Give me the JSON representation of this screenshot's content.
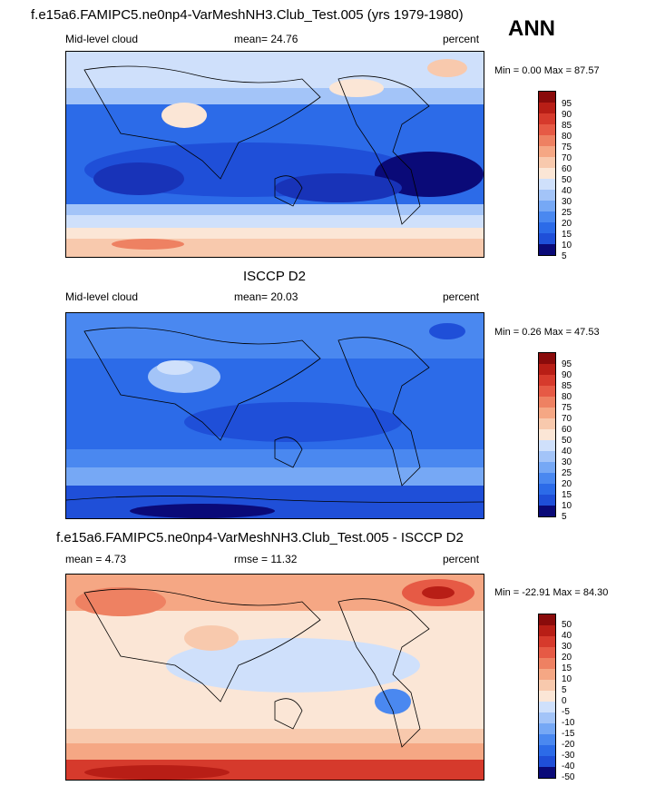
{
  "season": "ANN",
  "colors": {
    "pos": [
      "#0a0a78",
      "#1833b8",
      "#1f4fd8",
      "#2c6be8",
      "#4a88f0",
      "#76a8f5",
      "#a3c4f8",
      "#cfe0fb",
      "#fbe6d6",
      "#f8c9ad",
      "#f5a784",
      "#ee8162",
      "#e65a45",
      "#d63a2c",
      "#b81e16",
      "#8a0b0b"
    ],
    "diff": [
      "#0a0a78",
      "#1833b8",
      "#1f4fd8",
      "#2c6be8",
      "#4a88f0",
      "#76a8f5",
      "#a3c4f8",
      "#cfe0fb",
      "#fbe6d6",
      "#f8c9ad",
      "#f5a784",
      "#ee8162",
      "#e65a45",
      "#d63a2c",
      "#b81e16",
      "#8a0b0b"
    ]
  },
  "chart_data": [
    {
      "type": "heatmap",
      "title": "f.e15a6.FAMIPC5.ne0np4-VarMeshNH3.Club_Test.005 (yrs 1979-1980)",
      "left_label": "Mid-level cloud",
      "mean_label": "mean=  24.76",
      "units": "percent",
      "minmax": "Min =   0.00 Max =  87.57",
      "mean": 24.76,
      "min": 0.0,
      "max": 87.57,
      "levels": [
        "95",
        "90",
        "85",
        "80",
        "75",
        "70",
        "60",
        "50",
        "40",
        "30",
        "25",
        "20",
        "15",
        "10",
        "5"
      ]
    },
    {
      "type": "heatmap",
      "title": "ISCCP D2",
      "left_label": "Mid-level cloud",
      "mean_label": "mean=  20.03",
      "units": "percent",
      "minmax": "Min =   0.26 Max =  47.53",
      "mean": 20.03,
      "min": 0.26,
      "max": 47.53,
      "levels": [
        "95",
        "90",
        "85",
        "80",
        "75",
        "70",
        "60",
        "50",
        "40",
        "30",
        "25",
        "20",
        "15",
        "10",
        "5"
      ]
    },
    {
      "type": "heatmap",
      "title": "f.e15a6.FAMIPC5.ne0np4-VarMeshNH3.Club_Test.005 - ISCCP D2",
      "left_label": "mean =   4.73",
      "mean_label": "rmse =  11.32",
      "units": "percent",
      "minmax": "Min = -22.91 Max =  84.30",
      "mean": 4.73,
      "rmse": 11.32,
      "min": -22.91,
      "max": 84.3,
      "levels": [
        "50",
        "40",
        "30",
        "20",
        "15",
        "10",
        "5",
        "0",
        "-5",
        "-10",
        "-15",
        "-20",
        "-30",
        "-40",
        "-50"
      ]
    }
  ]
}
